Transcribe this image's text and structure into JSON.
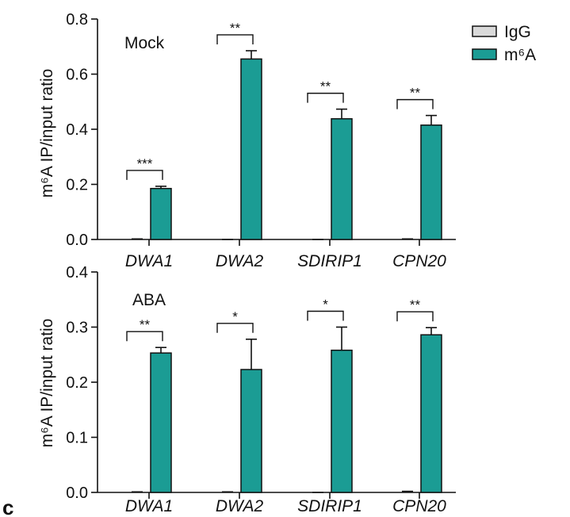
{
  "colors": {
    "igg": "#d9d9d9",
    "m6a": "#1b9c94",
    "stroke": "#111111"
  },
  "legend": [
    {
      "name": "IgG",
      "color": "#d9d9d9"
    },
    {
      "name": "m⁶A",
      "color": "#1b9c94"
    }
  ],
  "panel_letter": "c",
  "chart_data": [
    {
      "type": "bar",
      "title": "Mock",
      "ylabel": "m⁶A IP/input ratio",
      "ylim": [
        0,
        0.8
      ],
      "yticks": [
        0.0,
        0.2,
        0.4,
        0.6,
        0.8
      ],
      "ytick_labels": [
        "0.0",
        "0.2",
        "0.4",
        "0.6",
        "0.8"
      ],
      "categories": [
        "DWA1",
        "DWA2",
        "SDIRIP1",
        "CPN20"
      ],
      "series": [
        {
          "name": "IgG",
          "values": [
            0.0,
            0.0,
            0.0,
            0.0
          ],
          "errors": [
            0.002,
            0.0,
            0.0,
            0.002
          ]
        },
        {
          "name": "m⁶A",
          "values": [
            0.185,
            0.655,
            0.438,
            0.415
          ],
          "errors": [
            0.008,
            0.03,
            0.035,
            0.035
          ]
        }
      ],
      "significance": [
        "***",
        "**",
        "**",
        "**"
      ],
      "grid": false,
      "legend_position": "top-right"
    },
    {
      "type": "bar",
      "title": "ABA",
      "ylabel": "m⁶A IP/input ratio",
      "ylim": [
        0,
        0.4
      ],
      "yticks": [
        0.0,
        0.1,
        0.2,
        0.3,
        0.4
      ],
      "ytick_labels": [
        "0.0",
        "0.1",
        "0.2",
        "0.3",
        "0.4"
      ],
      "categories": [
        "DWA1",
        "DWA2",
        "SDIRIP1",
        "CPN20"
      ],
      "series": [
        {
          "name": "IgG",
          "values": [
            0.0,
            0.0,
            0.0,
            0.0
          ],
          "errors": [
            0.001,
            0.001,
            0.0,
            0.002
          ]
        },
        {
          "name": "m⁶A",
          "values": [
            0.253,
            0.223,
            0.258,
            0.286
          ],
          "errors": [
            0.01,
            0.055,
            0.042,
            0.013
          ]
        }
      ],
      "significance": [
        "**",
        "*",
        "*",
        "**"
      ],
      "grid": false
    }
  ]
}
